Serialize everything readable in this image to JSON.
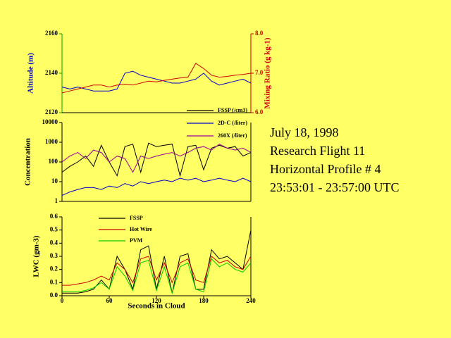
{
  "chart_data": [
    {
      "type": "line",
      "ylabel": "Altitude (m)",
      "y2label": "Mixing Ratio (g kg-1)",
      "x": [
        0,
        10,
        20,
        30,
        40,
        50,
        60,
        70,
        80,
        90,
        100,
        110,
        120,
        130,
        140,
        150,
        160,
        170,
        180,
        190,
        200,
        210,
        220,
        230,
        240
      ],
      "xlim": [
        0,
        240
      ],
      "ylim": [
        2120,
        2160
      ],
      "yticks": [
        2120,
        2140,
        2160
      ],
      "y2lim": [
        6,
        8
      ],
      "y2ticks": [
        {
          "value": 6,
          "label": "6.0"
        },
        {
          "value": 7,
          "label": "7.0"
        },
        {
          "value": 8,
          "label": "8.0"
        }
      ],
      "series": [
        {
          "color": "#0000cc",
          "axis": "y",
          "values": [
            2133,
            2132,
            2133,
            2132,
            2131,
            2131,
            2131,
            2132,
            2140,
            2141,
            2139,
            2138,
            2137,
            2136,
            2135,
            2135,
            2136,
            2137,
            2140,
            2136,
            2134,
            2135,
            2136,
            2137,
            2135
          ]
        },
        {
          "color": "#cc0000",
          "axis": "y2",
          "values": [
            6.5,
            6.55,
            6.6,
            6.65,
            6.7,
            6.7,
            6.65,
            6.7,
            6.72,
            6.7,
            6.75,
            6.8,
            6.78,
            6.82,
            6.85,
            6.88,
            6.9,
            7.25,
            7.12,
            6.95,
            6.9,
            6.92,
            6.95,
            6.97,
            7.0
          ]
        }
      ]
    },
    {
      "type": "line",
      "ylabel": "Concentration",
      "log": true,
      "legend": "top-right",
      "x": [
        0,
        10,
        20,
        30,
        40,
        50,
        60,
        70,
        80,
        90,
        100,
        110,
        120,
        130,
        140,
        150,
        160,
        170,
        180,
        190,
        200,
        210,
        220,
        230,
        240
      ],
      "xlim": [
        0,
        240
      ],
      "ylim": [
        1,
        10000
      ],
      "yticks": [
        1,
        10,
        100,
        1000,
        10000
      ],
      "series": [
        {
          "name": "FSSP (/cm3)",
          "color": "#000000",
          "values": [
            30,
            60,
            100,
            200,
            60,
            700,
            100,
            20,
            600,
            800,
            30,
            900,
            600,
            700,
            800,
            20,
            600,
            700,
            40,
            500,
            700,
            500,
            600,
            200,
            300
          ]
        },
        {
          "name": "2D-C (/liter)",
          "color": "#0000cc",
          "values": [
            2,
            3,
            4,
            5,
            5,
            4,
            6,
            5,
            8,
            6,
            10,
            8,
            10,
            12,
            10,
            15,
            12,
            15,
            10,
            12,
            15,
            12,
            10,
            15,
            10
          ]
        },
        {
          "name": "260X (/liter)",
          "color": "#990099",
          "values": [
            100,
            200,
            300,
            150,
            400,
            300,
            100,
            200,
            150,
            30,
            200,
            150,
            200,
            250,
            300,
            200,
            300,
            500,
            600,
            400,
            800,
            500,
            400,
            500,
            300
          ]
        }
      ]
    },
    {
      "type": "line",
      "ylabel": "LWC (gm-3)",
      "xlabel": "Seconds in Cloud",
      "legend": "top-left",
      "x": [
        0,
        10,
        20,
        30,
        40,
        50,
        60,
        70,
        80,
        90,
        100,
        110,
        120,
        130,
        140,
        150,
        160,
        170,
        180,
        190,
        200,
        210,
        220,
        230,
        240
      ],
      "xlim": [
        0,
        240
      ],
      "xticks": [
        0,
        60,
        120,
        180,
        240
      ],
      "ylim": [
        0,
        0.6
      ],
      "yticks": [
        {
          "value": 0,
          "label": "0.0"
        },
        0.1,
        0.2,
        0.3,
        0.4,
        0.5,
        0.6
      ],
      "series": [
        {
          "name": "FSSP",
          "color": "#000000",
          "values": [
            0.02,
            0.02,
            0.02,
            0.03,
            0.05,
            0.12,
            0.05,
            0.3,
            0.2,
            0.05,
            0.35,
            0.38,
            0.05,
            0.3,
            0.02,
            0.3,
            0.32,
            0.05,
            0.05,
            0.35,
            0.28,
            0.3,
            0.25,
            0.2,
            0.5
          ]
        },
        {
          "name": "Hot Wire",
          "color": "#cc0000",
          "values": [
            0.08,
            0.08,
            0.09,
            0.1,
            0.12,
            0.15,
            0.12,
            0.25,
            0.2,
            0.1,
            0.28,
            0.3,
            0.12,
            0.25,
            0.1,
            0.25,
            0.28,
            0.12,
            0.1,
            0.3,
            0.25,
            0.27,
            0.22,
            0.2,
            0.3
          ]
        },
        {
          "name": "PVM",
          "color": "#00cc00",
          "values": [
            0.03,
            0.03,
            0.03,
            0.04,
            0.06,
            0.1,
            0.05,
            0.22,
            0.15,
            0.04,
            0.25,
            0.27,
            0.04,
            0.22,
            0.02,
            0.22,
            0.25,
            0.05,
            0.03,
            0.28,
            0.22,
            0.25,
            0.2,
            0.18,
            0.25
          ]
        }
      ]
    }
  ],
  "text_block": [
    "July 18, 1998",
    "Research Flight 11",
    "Horizontal Profile # 4",
    "23:53:01 - 23:57:00 UTC"
  ]
}
